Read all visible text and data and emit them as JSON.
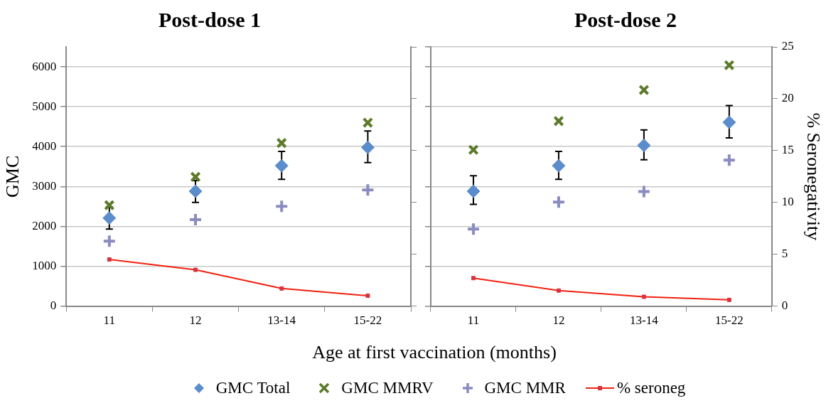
{
  "chart_data": [
    {
      "type": "scatter",
      "title": "Post-dose 1",
      "xlabel": "Age at first vaccination (months)",
      "ylabel": "GMC",
      "categories": [
        "11",
        "12",
        "13-14",
        "15-22"
      ],
      "ylim": [
        0,
        6500
      ],
      "yticks": [
        0,
        1000,
        2000,
        3000,
        4000,
        5000,
        6000
      ],
      "y2lim": [
        0,
        25
      ],
      "grid": "y",
      "legend": "bottom",
      "series": [
        {
          "name": "GMC Total",
          "color": "#5b8ccb",
          "marker": "diamond",
          "values": [
            2210,
            2880,
            3520,
            3980
          ],
          "errors": [
            [
              1930,
              2490
            ],
            [
              2600,
              3150
            ],
            [
              3180,
              3880
            ],
            [
              3600,
              4390
            ]
          ]
        },
        {
          "name": "GMC MMRV",
          "color": "#5c7a2a",
          "marker": "x",
          "values": [
            2530,
            3240,
            4090,
            4600
          ]
        },
        {
          "name": "GMC MMR",
          "color": "#8a8cc0",
          "marker": "cross",
          "values": [
            1630,
            2170,
            2500,
            2910
          ]
        },
        {
          "name": "% seroneg",
          "type": "line",
          "axis": "y2",
          "color": "#f2200f",
          "marker": "square",
          "values": [
            4.5,
            3.5,
            1.7,
            1.0
          ]
        }
      ]
    },
    {
      "type": "scatter",
      "title": "Post-dose 2",
      "categories": [
        "11",
        "12",
        "13-14",
        "15-22"
      ],
      "ylim": [
        0,
        6500
      ],
      "y2label": "% Seronegativity",
      "y2lim": [
        0,
        25
      ],
      "y2ticks": [
        0,
        5,
        10,
        15,
        20,
        25
      ],
      "grid": "y",
      "series": [
        {
          "color": "#5b8ccb",
          "marker": "diamond",
          "values": [
            2880,
            3520,
            4030,
            4610
          ],
          "errors": [
            [
              2550,
              3270
            ],
            [
              3180,
              3880
            ],
            [
              3670,
              4420
            ],
            [
              4220,
              5030
            ]
          ]
        },
        {
          "color": "#5c7a2a",
          "marker": "x",
          "values": [
            3920,
            4640,
            5420,
            6040
          ]
        },
        {
          "color": "#8a8cc0",
          "marker": "cross",
          "values": [
            1930,
            2610,
            2870,
            3660
          ]
        },
        {
          "type": "line",
          "axis": "y2",
          "color": "#f2200f",
          "marker": "square",
          "values": [
            2.7,
            1.5,
            0.9,
            0.6
          ]
        }
      ]
    }
  ]
}
